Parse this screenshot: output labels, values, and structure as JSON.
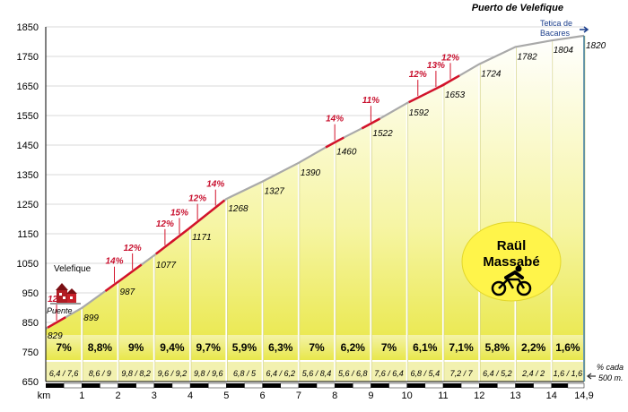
{
  "chart_data": {
    "type": "area",
    "title": "Puerto  de  Velefique",
    "xlabel": "km",
    "ylabel": "",
    "ylim": [
      650,
      1850
    ],
    "xlim": [
      0,
      14.9
    ],
    "y_ticks": [
      "650",
      "750",
      "850",
      "950",
      "1050",
      "1150",
      "1250",
      "1350",
      "1450",
      "1550",
      "1650",
      "1750",
      "1850"
    ],
    "x_ticks": [
      {
        "x": 0,
        "label": "km"
      },
      {
        "x": 1,
        "label": "1"
      },
      {
        "x": 2,
        "label": "2"
      },
      {
        "x": 3,
        "label": "3"
      },
      {
        "x": 4,
        "label": "4"
      },
      {
        "x": 5,
        "label": "5"
      },
      {
        "x": 6,
        "label": "6"
      },
      {
        "x": 7,
        "label": "7"
      },
      {
        "x": 8,
        "label": "8"
      },
      {
        "x": 9,
        "label": "9"
      },
      {
        "x": 10,
        "label": "10"
      },
      {
        "x": 11,
        "label": "11"
      },
      {
        "x": 12,
        "label": "12"
      },
      {
        "x": 13,
        "label": "13"
      },
      {
        "x": 14,
        "label": "14"
      },
      {
        "x": 14.9,
        "label": "14,9"
      }
    ],
    "points": [
      {
        "km": 0,
        "alt": 829,
        "label": "829"
      },
      {
        "km": 1,
        "alt": 899,
        "label": "899"
      },
      {
        "km": 2,
        "alt": 987,
        "label": "987"
      },
      {
        "km": 3,
        "alt": 1077,
        "label": "1077"
      },
      {
        "km": 4,
        "alt": 1171,
        "label": "1171"
      },
      {
        "km": 5,
        "alt": 1268,
        "label": "1268"
      },
      {
        "km": 6,
        "alt": 1327,
        "label": "1327"
      },
      {
        "km": 7,
        "alt": 1390,
        "label": "1390"
      },
      {
        "km": 8,
        "alt": 1460,
        "label": "1460"
      },
      {
        "km": 9,
        "alt": 1522,
        "label": "1522"
      },
      {
        "km": 10,
        "alt": 1592,
        "label": "1592"
      },
      {
        "km": 11,
        "alt": 1653,
        "label": "1653"
      },
      {
        "km": 12,
        "alt": 1724,
        "label": "1724"
      },
      {
        "km": 13,
        "alt": 1782,
        "label": "1782"
      },
      {
        "km": 14,
        "alt": 1804,
        "label": "1804"
      },
      {
        "km": 14.9,
        "alt": 1820,
        "label": "1820"
      }
    ],
    "segments": [
      {
        "pct": "7%",
        "halves": "6,4 / 7,6"
      },
      {
        "pct": "8,8%",
        "halves": "8,6 / 9"
      },
      {
        "pct": "9%",
        "halves": "9,8 / 8,2"
      },
      {
        "pct": "9,4%",
        "halves": "9,6 / 9,2"
      },
      {
        "pct": "9,7%",
        "halves": "9,8 / 9,6"
      },
      {
        "pct": "5,9%",
        "halves": "6,8 / 5"
      },
      {
        "pct": "6,3%",
        "halves": "6,4 / 6,2"
      },
      {
        "pct": "7%",
        "halves": "5,6 / 8,4"
      },
      {
        "pct": "6,2%",
        "halves": "5,6 / 6,8"
      },
      {
        "pct": "7%",
        "halves": "7,6 / 6,4"
      },
      {
        "pct": "6,1%",
        "halves": "6,8 / 5,4"
      },
      {
        "pct": "7,1%",
        "halves": "7,2 / 7"
      },
      {
        "pct": "5,8%",
        "halves": "6,4 / 5,2"
      },
      {
        "pct": "2,2%",
        "halves": "2,4 / 2"
      },
      {
        "pct": "1,6%",
        "halves": "1,6 / 1,6"
      }
    ],
    "steep_ramps": [
      {
        "km": 0.3,
        "label": "12%"
      },
      {
        "km": 1.9,
        "label": "14%"
      },
      {
        "km": 2.4,
        "label": "12%"
      },
      {
        "km": 3.3,
        "label": "12%"
      },
      {
        "km": 3.7,
        "label": "15%"
      },
      {
        "km": 4.2,
        "label": "12%"
      },
      {
        "km": 4.7,
        "label": "14%"
      },
      {
        "km": 8.0,
        "label": "14%"
      },
      {
        "km": 9.0,
        "label": "11%"
      },
      {
        "km": 10.3,
        "label": "12%"
      },
      {
        "km": 10.8,
        "label": "13%"
      },
      {
        "km": 11.2,
        "label": "12%"
      }
    ]
  },
  "places": {
    "start_town": "Velefique",
    "start_bridge": "Puente",
    "destination_line1": "Tetica de",
    "destination_line2": "Bacares"
  },
  "notes": {
    "unit_line1": "% cada",
    "unit_line2": "500 m."
  },
  "author": {
    "line1": "Raül",
    "line2": "Massabé"
  },
  "colors": {
    "fill_top": "#ffffff",
    "fill_bottom": "#e8e63c",
    "profile_line": "#b8b8b8",
    "steep": "#d3122a",
    "author_badge": "#fff44a",
    "destination_text": "#1c3f8c"
  }
}
